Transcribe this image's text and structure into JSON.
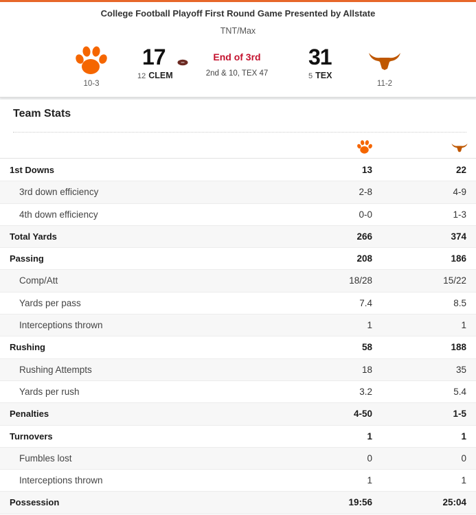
{
  "game": {
    "title": "College Football Playoff First Round Game Presented by Allstate",
    "network": "TNT/Max",
    "status": "End of 3rd",
    "situation": "2nd & 10, TEX 47"
  },
  "away": {
    "score": "17",
    "rank": "12",
    "abbr": "CLEM",
    "record": "10-3",
    "logo_icon": "tiger-paw-icon",
    "color": "#f56600"
  },
  "home": {
    "score": "31",
    "rank": "5",
    "abbr": "TEX",
    "record": "11-2",
    "logo_icon": "longhorn-icon",
    "color": "#bf5700"
  },
  "team_stats": {
    "title": "Team Stats",
    "rows": [
      {
        "label": "1st Downs",
        "away": "13",
        "home": "22",
        "type": "main"
      },
      {
        "label": "3rd down efficiency",
        "away": "2-8",
        "home": "4-9",
        "type": "sub"
      },
      {
        "label": "4th down efficiency",
        "away": "0-0",
        "home": "1-3",
        "type": "sub"
      },
      {
        "label": "Total Yards",
        "away": "266",
        "home": "374",
        "type": "main"
      },
      {
        "label": "Passing",
        "away": "208",
        "home": "186",
        "type": "main"
      },
      {
        "label": "Comp/Att",
        "away": "18/28",
        "home": "15/22",
        "type": "sub"
      },
      {
        "label": "Yards per pass",
        "away": "7.4",
        "home": "8.5",
        "type": "sub"
      },
      {
        "label": "Interceptions thrown",
        "away": "1",
        "home": "1",
        "type": "sub"
      },
      {
        "label": "Rushing",
        "away": "58",
        "home": "188",
        "type": "main"
      },
      {
        "label": "Rushing Attempts",
        "away": "18",
        "home": "35",
        "type": "sub"
      },
      {
        "label": "Yards per rush",
        "away": "3.2",
        "home": "5.4",
        "type": "sub"
      },
      {
        "label": "Penalties",
        "away": "4-50",
        "home": "1-5",
        "type": "main"
      },
      {
        "label": "Turnovers",
        "away": "1",
        "home": "1",
        "type": "main"
      },
      {
        "label": "Fumbles lost",
        "away": "0",
        "home": "0",
        "type": "sub"
      },
      {
        "label": "Interceptions thrown",
        "away": "1",
        "home": "1",
        "type": "sub"
      },
      {
        "label": "Possession",
        "away": "19:56",
        "home": "25:04",
        "type": "main"
      }
    ]
  }
}
